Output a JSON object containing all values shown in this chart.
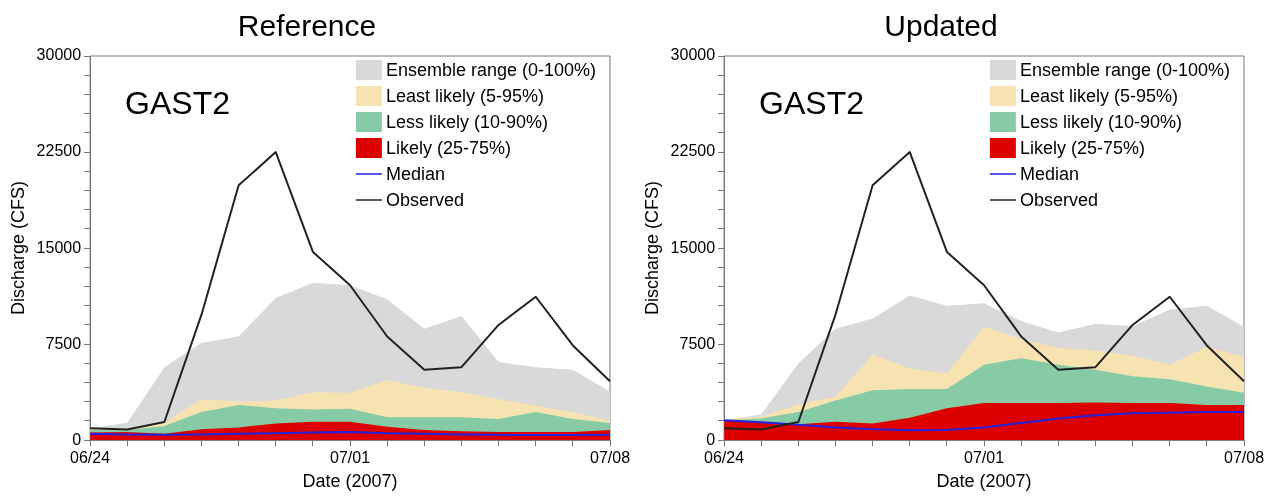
{
  "chart_data": [
    {
      "type": "area",
      "title": "Reference",
      "xlabel": "Date (2007)",
      "ylabel": "Discharge (CFS)",
      "annotations": [
        "GAST2"
      ],
      "legend": "top right",
      "grid": false,
      "x": [
        "2007-06-24",
        "2007-06-25",
        "2007-06-26",
        "2007-06-27",
        "2007-06-28",
        "2007-06-29",
        "2007-06-30",
        "2007-07-01",
        "2007-07-02",
        "2007-07-03",
        "2007-07-04",
        "2007-07-05",
        "2007-07-06",
        "2007-07-07",
        "2007-07-08"
      ],
      "xlim": [
        "2007-06-24",
        "2007-07-08"
      ],
      "xticks": [
        {
          "value": "2007-06-24",
          "label": "06/24"
        },
        {
          "value": "2007-06-25",
          "label": null
        },
        {
          "value": "2007-06-26",
          "label": null
        },
        {
          "value": "2007-06-27",
          "label": null
        },
        {
          "value": "2007-06-28",
          "label": null
        },
        {
          "value": "2007-06-29",
          "label": null
        },
        {
          "value": "2007-06-30",
          "label": null
        },
        {
          "value": "2007-07-01",
          "label": "07/01"
        },
        {
          "value": "2007-07-02",
          "label": null
        },
        {
          "value": "2007-07-03",
          "label": null
        },
        {
          "value": "2007-07-04",
          "label": null
        },
        {
          "value": "2007-07-05",
          "label": null
        },
        {
          "value": "2007-07-06",
          "label": null
        },
        {
          "value": "2007-07-07",
          "label": null
        },
        {
          "value": "2007-07-08",
          "label": "07/08"
        }
      ],
      "ylim": [
        0,
        30000
      ],
      "yticks": [
        0,
        {
          "value": 1500,
          "label": null
        },
        {
          "value": 3000,
          "label": null
        },
        {
          "value": 4500,
          "label": null
        },
        {
          "value": 6000,
          "label": null
        },
        7500,
        {
          "value": 9000,
          "label": null
        },
        {
          "value": 10500,
          "label": null
        },
        {
          "value": 12000,
          "label": null
        },
        {
          "value": 13500,
          "label": null
        },
        15000,
        {
          "value": 16500,
          "label": null
        },
        {
          "value": 18000,
          "label": null
        },
        {
          "value": 19500,
          "label": null
        },
        {
          "value": 21000,
          "label": null
        },
        22500,
        {
          "value": 24000,
          "label": null
        },
        {
          "value": 25500,
          "label": null
        },
        {
          "value": 27000,
          "label": null
        },
        {
          "value": 28500,
          "label": null
        },
        30000
      ],
      "series": [
        {
          "name": "Ensemble range (0-100%)",
          "type": "area",
          "color": "#d9d9d9",
          "values": [
            930,
            1370,
            5700,
            7600,
            8100,
            11100,
            12300,
            12100,
            11000,
            8700,
            9700,
            6100,
            5700,
            5500,
            3800
          ]
        },
        {
          "name": "Least likely (5-95%)",
          "type": "area",
          "color": "#f7e3b1",
          "values": [
            930,
            930,
            1370,
            3200,
            3000,
            3100,
            3750,
            3700,
            4700,
            4100,
            3750,
            3200,
            2700,
            2200,
            1500
          ]
        },
        {
          "name": "Less likely (10-90%)",
          "type": "area",
          "color": "#86cba5",
          "values": [
            800,
            800,
            1100,
            2200,
            2750,
            2500,
            2400,
            2450,
            1800,
            1800,
            1800,
            1650,
            2200,
            1650,
            1350
          ]
        },
        {
          "name": "Likely (25-75%)",
          "type": "area",
          "color": "#dd0000",
          "values": [
            600,
            640,
            500,
            850,
            1000,
            1300,
            1450,
            1450,
            1050,
            800,
            700,
            640,
            640,
            640,
            800
          ]
        },
        {
          "name": "Median",
          "type": "line",
          "color": "#2222dd",
          "values": [
            500,
            450,
            430,
            450,
            500,
            550,
            600,
            650,
            550,
            500,
            450,
            420,
            400,
            400,
            420
          ]
        },
        {
          "name": "Observed",
          "type": "line",
          "color": "#222222",
          "values": [
            930,
            840,
            1420,
            9800,
            19900,
            22500,
            14700,
            12100,
            8100,
            5500,
            5700,
            9000,
            11200,
            7400,
            4600
          ]
        }
      ]
    },
    {
      "type": "area",
      "title": "Updated",
      "xlabel": "Date (2007)",
      "ylabel": "Discharge (CFS)",
      "annotations": [
        "GAST2"
      ],
      "legend": "top right",
      "grid": false,
      "x": [
        "2007-06-24",
        "2007-06-25",
        "2007-06-26",
        "2007-06-27",
        "2007-06-28",
        "2007-06-29",
        "2007-06-30",
        "2007-07-01",
        "2007-07-02",
        "2007-07-03",
        "2007-07-04",
        "2007-07-05",
        "2007-07-06",
        "2007-07-07",
        "2007-07-08"
      ],
      "xlim": [
        "2007-06-24",
        "2007-07-08"
      ],
      "xticks": [
        {
          "value": "2007-06-24",
          "label": "06/24"
        },
        {
          "value": "2007-06-25",
          "label": null
        },
        {
          "value": "2007-06-26",
          "label": null
        },
        {
          "value": "2007-06-27",
          "label": null
        },
        {
          "value": "2007-06-28",
          "label": null
        },
        {
          "value": "2007-06-29",
          "label": null
        },
        {
          "value": "2007-06-30",
          "label": null
        },
        {
          "value": "2007-07-01",
          "label": "07/01"
        },
        {
          "value": "2007-07-02",
          "label": null
        },
        {
          "value": "2007-07-03",
          "label": null
        },
        {
          "value": "2007-07-04",
          "label": null
        },
        {
          "value": "2007-07-05",
          "label": null
        },
        {
          "value": "2007-07-06",
          "label": null
        },
        {
          "value": "2007-07-07",
          "label": null
        },
        {
          "value": "2007-07-08",
          "label": "07/08"
        }
      ],
      "ylim": [
        0,
        30000
      ],
      "yticks": [
        0,
        {
          "value": 1500,
          "label": null
        },
        {
          "value": 3000,
          "label": null
        },
        {
          "value": 4500,
          "label": null
        },
        {
          "value": 6000,
          "label": null
        },
        7500,
        {
          "value": 9000,
          "label": null
        },
        {
          "value": 10500,
          "label": null
        },
        {
          "value": 12000,
          "label": null
        },
        {
          "value": 13500,
          "label": null
        },
        15000,
        {
          "value": 16500,
          "label": null
        },
        {
          "value": 18000,
          "label": null
        },
        {
          "value": 19500,
          "label": null
        },
        {
          "value": 21000,
          "label": null
        },
        22500,
        {
          "value": 24000,
          "label": null
        },
        {
          "value": 25500,
          "label": null
        },
        {
          "value": 27000,
          "label": null
        },
        {
          "value": 28500,
          "label": null
        },
        30000
      ],
      "series": [
        {
          "name": "Ensemble range (0-100%)",
          "type": "area",
          "color": "#d9d9d9",
          "values": [
            1550,
            2000,
            6000,
            8700,
            9500,
            11300,
            10500,
            10700,
            9300,
            8400,
            9100,
            8900,
            10200,
            10500,
            8850
          ]
        },
        {
          "name": "Least likely (5-95%)",
          "type": "area",
          "color": "#f7e3b1",
          "values": [
            1550,
            1850,
            2800,
            3400,
            6700,
            5600,
            5200,
            8850,
            7900,
            7200,
            7000,
            6600,
            5900,
            7300,
            6500
          ]
        },
        {
          "name": "Less likely (10-90%)",
          "type": "area",
          "color": "#86cba5",
          "values": [
            1550,
            1700,
            2200,
            3100,
            3900,
            4000,
            4000,
            5900,
            6400,
            5900,
            5500,
            5000,
            4750,
            4200,
            3700
          ]
        },
        {
          "name": "Likely (25-75%)",
          "type": "area",
          "color": "#dd0000",
          "values": [
            1550,
            1400,
            1250,
            1450,
            1300,
            1750,
            2500,
            2900,
            2900,
            2900,
            2950,
            2900,
            2900,
            2750,
            2750
          ]
        },
        {
          "name": "Median",
          "type": "line",
          "color": "#2222dd",
          "values": [
            1550,
            1400,
            1200,
            1000,
            850,
            780,
            800,
            1000,
            1350,
            1700,
            1950,
            2100,
            2150,
            2200,
            2200
          ]
        },
        {
          "name": "Observed",
          "type": "line",
          "color": "#222222",
          "values": [
            930,
            840,
            1420,
            9800,
            19900,
            22500,
            14700,
            12100,
            8100,
            5500,
            5700,
            9000,
            11200,
            7400,
            4600
          ]
        }
      ]
    }
  ]
}
